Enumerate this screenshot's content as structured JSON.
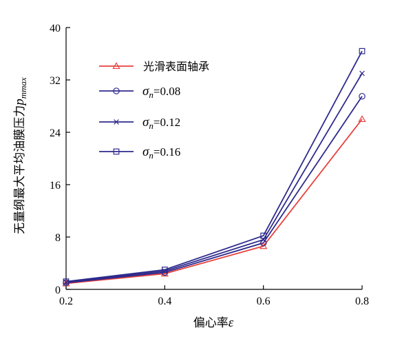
{
  "chart_data": {
    "type": "line",
    "title": "",
    "xlabel": "偏心率",
    "xlabel_symbol": "ε",
    "ylabel": "无量纲最大平均油膜压力",
    "ylabel_symbol": "p",
    "ylabel_subscript": "mmax",
    "xlim": [
      0.2,
      0.8
    ],
    "ylim": [
      0,
      40
    ],
    "x_ticks": [
      "0.2",
      "0.4",
      "0.6",
      "0.8"
    ],
    "y_ticks": [
      "0",
      "8",
      "16",
      "24",
      "32",
      "40"
    ],
    "x": [
      0.2,
      0.4,
      0.6,
      0.8
    ],
    "grid": false,
    "legend_position": "top-left",
    "series": [
      {
        "name": "光滑表面轴承",
        "marker": "triangle",
        "color": "#e8413c",
        "values": [
          0.9,
          2.4,
          6.6,
          26.0
        ]
      },
      {
        "name_symbol": "σ",
        "name_sub": "n",
        "name_value": "=0.08",
        "marker": "circle",
        "color": "#2e2a8c",
        "values": [
          1.0,
          2.6,
          7.1,
          29.5
        ]
      },
      {
        "name_symbol": "σ",
        "name_sub": "n",
        "name_value": "=0.12",
        "marker": "x",
        "color": "#2e2a8c",
        "values": [
          1.1,
          2.8,
          7.6,
          33.0
        ]
      },
      {
        "name_symbol": "σ",
        "name_sub": "n",
        "name_value": "=0.16",
        "marker": "square",
        "color": "#2e2a8c",
        "values": [
          1.2,
          3.0,
          8.2,
          36.4
        ]
      }
    ]
  }
}
